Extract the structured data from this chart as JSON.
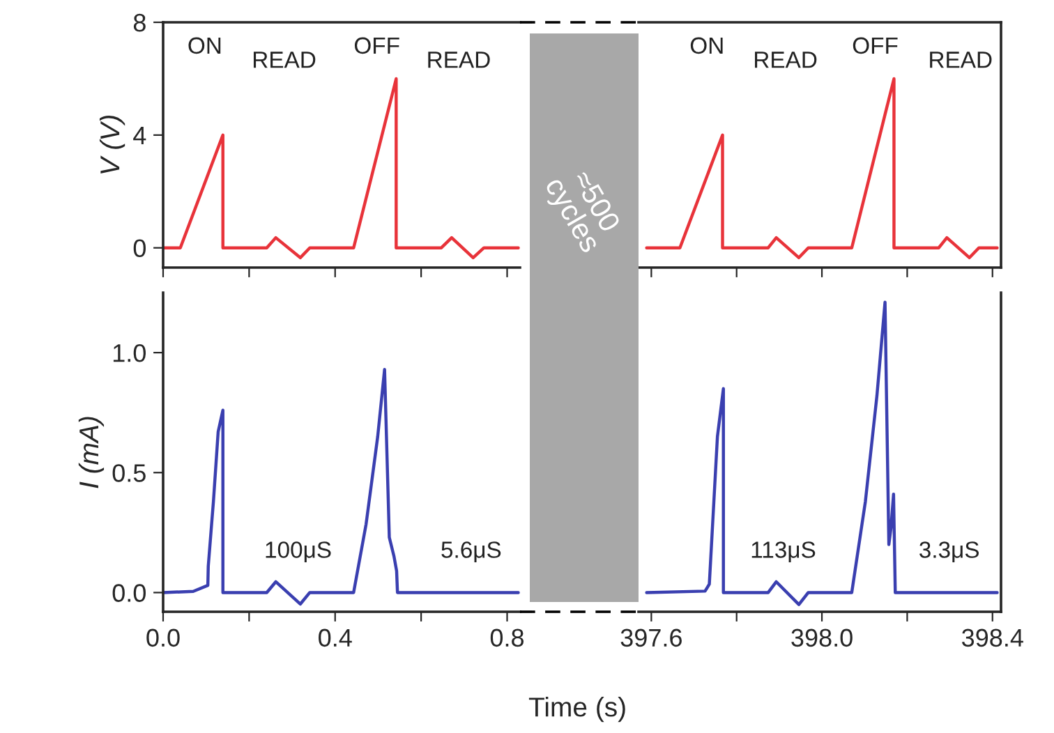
{
  "chart_data": [
    {
      "type": "line",
      "ylabel": "V (V)",
      "xlim": [
        0,
        0.83
      ],
      "ylim": [
        -0.7,
        8
      ],
      "yticks": [
        0,
        4,
        8
      ],
      "xticks": [
        {
          "value": 0,
          "label": null
        },
        {
          "value": 0.2,
          "label": null
        },
        {
          "value": 0.4,
          "label": null
        },
        {
          "value": 0.6,
          "label": null
        },
        {
          "value": 0.8,
          "label": null
        }
      ],
      "tick_labels": "y",
      "grid": false,
      "legend": false,
      "series": [
        {
          "color": "#e8333a",
          "x": [
            0,
            0.04,
            0.139,
            0.139,
            0.241,
            0.262,
            0.319,
            0.341,
            0.443,
            0.542,
            0.542,
            0.647,
            0.671,
            0.721,
            0.746,
            0.826
          ],
          "values": [
            0,
            0,
            4,
            0,
            0,
            0.36,
            -0.35,
            0,
            0,
            6,
            0,
            0,
            0.36,
            -0.35,
            0,
            0
          ]
        }
      ],
      "annotations": [
        "ON",
        "READ",
        "OFF",
        "READ",
        "≈500\ncycles"
      ]
    },
    {
      "type": "line",
      "xlim": [
        397.57,
        398.42
      ],
      "ylim": [
        -0.7,
        8
      ],
      "xticks": [
        {
          "value": 397.6,
          "label": null
        },
        {
          "value": 397.8,
          "label": null
        },
        {
          "value": 398.0,
          "label": null
        },
        {
          "value": 398.2,
          "label": null
        },
        {
          "value": 398.4,
          "label": null
        }
      ],
      "tick_labels": false,
      "grid": false,
      "legend": false,
      "series": [
        {
          "color": "#e8333a",
          "x": [
            397.589,
            397.667,
            397.767,
            397.767,
            397.874,
            397.893,
            397.946,
            397.968,
            398.07,
            398.169,
            398.169,
            398.274,
            398.293,
            398.346,
            398.368,
            398.411
          ],
          "values": [
            0,
            0,
            4,
            0,
            0,
            0.36,
            -0.35,
            0,
            0,
            6,
            0,
            0,
            0.36,
            -0.35,
            0,
            0
          ]
        }
      ],
      "annotations": [
        "ON",
        "READ",
        "OFF",
        "READ"
      ]
    },
    {
      "type": "line",
      "ylabel": "I (mA)",
      "xlabel": "Time (s)",
      "xlim": [
        0,
        0.83
      ],
      "ylim": [
        -0.08,
        1.25
      ],
      "yticks": [
        {
          "value": 0,
          "label": "0.0"
        },
        {
          "value": 0.5,
          "label": "0.5"
        },
        {
          "value": 1.0,
          "label": "1.0"
        }
      ],
      "xticks": [
        {
          "value": 0,
          "label": "0.0"
        },
        {
          "value": 0.2,
          "label": null
        },
        {
          "value": 0.4,
          "label": "0.4"
        },
        {
          "value": 0.6,
          "label": null
        },
        {
          "value": 0.8,
          "label": "0.8"
        }
      ],
      "grid": false,
      "legend": false,
      "series": [
        {
          "color": "#3a3fb0",
          "x": [
            0,
            0.07,
            0.104,
            0.105,
            0.117,
            0.128,
            0.139,
            0.139,
            0.241,
            0.262,
            0.319,
            0.341,
            0.443,
            0.472,
            0.499,
            0.515,
            0.526,
            0.537,
            0.543,
            0.545,
            0.826
          ],
          "values": [
            0,
            0.005,
            0.03,
            0.11,
            0.38,
            0.67,
            0.76,
            0,
            0,
            0.045,
            -0.048,
            0,
            0,
            0.285,
            0.65,
            0.93,
            0.23,
            0.15,
            0.09,
            0,
            0
          ]
        }
      ],
      "annotations": [
        "100μS",
        "5.6μS"
      ]
    },
    {
      "type": "line",
      "xlim": [
        397.57,
        398.42
      ],
      "ylim": [
        -0.08,
        1.25
      ],
      "xticks": [
        {
          "value": 397.6,
          "label": "397.6"
        },
        {
          "value": 397.8,
          "label": null
        },
        {
          "value": 398.0,
          "label": "398.0"
        },
        {
          "value": 398.2,
          "label": null
        },
        {
          "value": 398.4,
          "label": "398.4"
        }
      ],
      "tick_labels": "x",
      "grid": false,
      "legend": false,
      "series": [
        {
          "color": "#3a3fb0",
          "x": [
            397.589,
            397.726,
            397.736,
            397.755,
            397.769,
            397.769,
            397.874,
            397.893,
            397.946,
            397.968,
            398.07,
            398.102,
            398.129,
            398.148,
            398.157,
            398.162,
            398.168,
            398.172,
            398.411
          ],
          "values": [
            0,
            0.006,
            0.035,
            0.65,
            0.85,
            0,
            0,
            0.045,
            -0.05,
            0,
            0,
            0.38,
            0.82,
            1.21,
            0.2,
            0.27,
            0.41,
            0,
            0
          ]
        }
      ],
      "annotations": [
        "113μS",
        "3.3μS"
      ]
    }
  ]
}
